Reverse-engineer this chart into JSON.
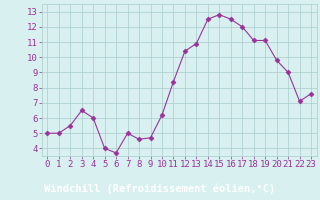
{
  "hours": [
    0,
    1,
    2,
    3,
    4,
    5,
    6,
    7,
    8,
    9,
    10,
    11,
    12,
    13,
    14,
    15,
    16,
    17,
    18,
    19,
    20,
    21,
    22,
    23
  ],
  "values": [
    5.0,
    5.0,
    5.5,
    6.5,
    6.0,
    4.0,
    3.7,
    5.0,
    4.6,
    4.7,
    6.2,
    8.4,
    10.4,
    10.9,
    12.5,
    12.8,
    12.5,
    12.0,
    11.1,
    11.1,
    9.8,
    9.0,
    7.1,
    7.6
  ],
  "line_color": "#993399",
  "marker": "D",
  "marker_size": 2.5,
  "bg_color": "#d8f0f0",
  "plot_bg_color": "#d8f0f0",
  "bottom_bar_color": "#9933cc",
  "grid_color": "#aacccc",
  "xlabel": "Windchill (Refroidissement éolien,°C)",
  "xlabel_color": "#ffffff",
  "tick_color": "#993399",
  "axis_label_fontsize": 7.5,
  "tick_fontsize": 6.5,
  "ylim": [
    3.5,
    13.5
  ],
  "yticks": [
    4,
    5,
    6,
    7,
    8,
    9,
    10,
    11,
    12,
    13
  ],
  "xlim": [
    -0.5,
    23.5
  ],
  "xticks": [
    0,
    1,
    2,
    3,
    4,
    5,
    6,
    7,
    8,
    9,
    10,
    11,
    12,
    13,
    14,
    15,
    16,
    17,
    18,
    19,
    20,
    21,
    22,
    23
  ]
}
